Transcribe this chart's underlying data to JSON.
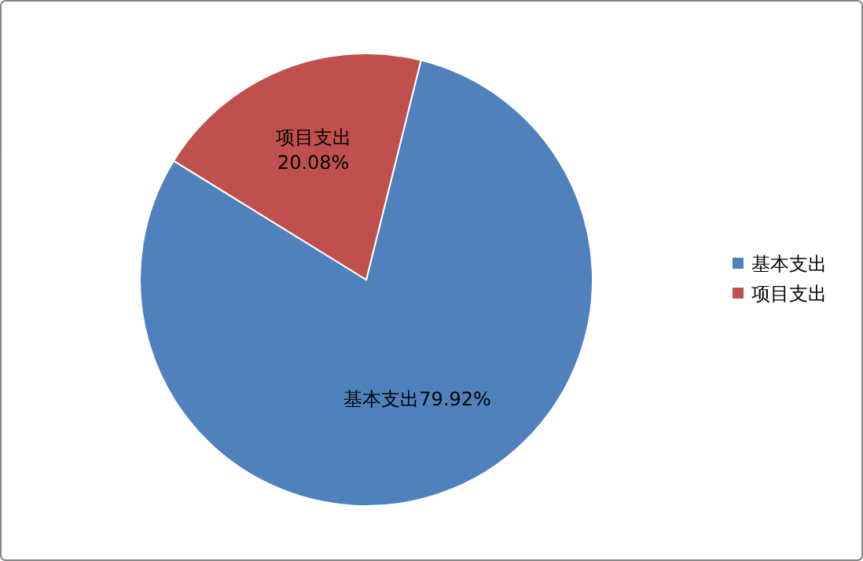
{
  "chart_data": {
    "type": "pie",
    "categories": [
      "基本支出",
      "项目支出"
    ],
    "values": [
      79.92,
      20.08
    ],
    "colors": [
      "#4f81bd",
      "#c0504d"
    ],
    "value_labels": [
      "79.92%",
      "20.08%"
    ],
    "legend": "right"
  }
}
